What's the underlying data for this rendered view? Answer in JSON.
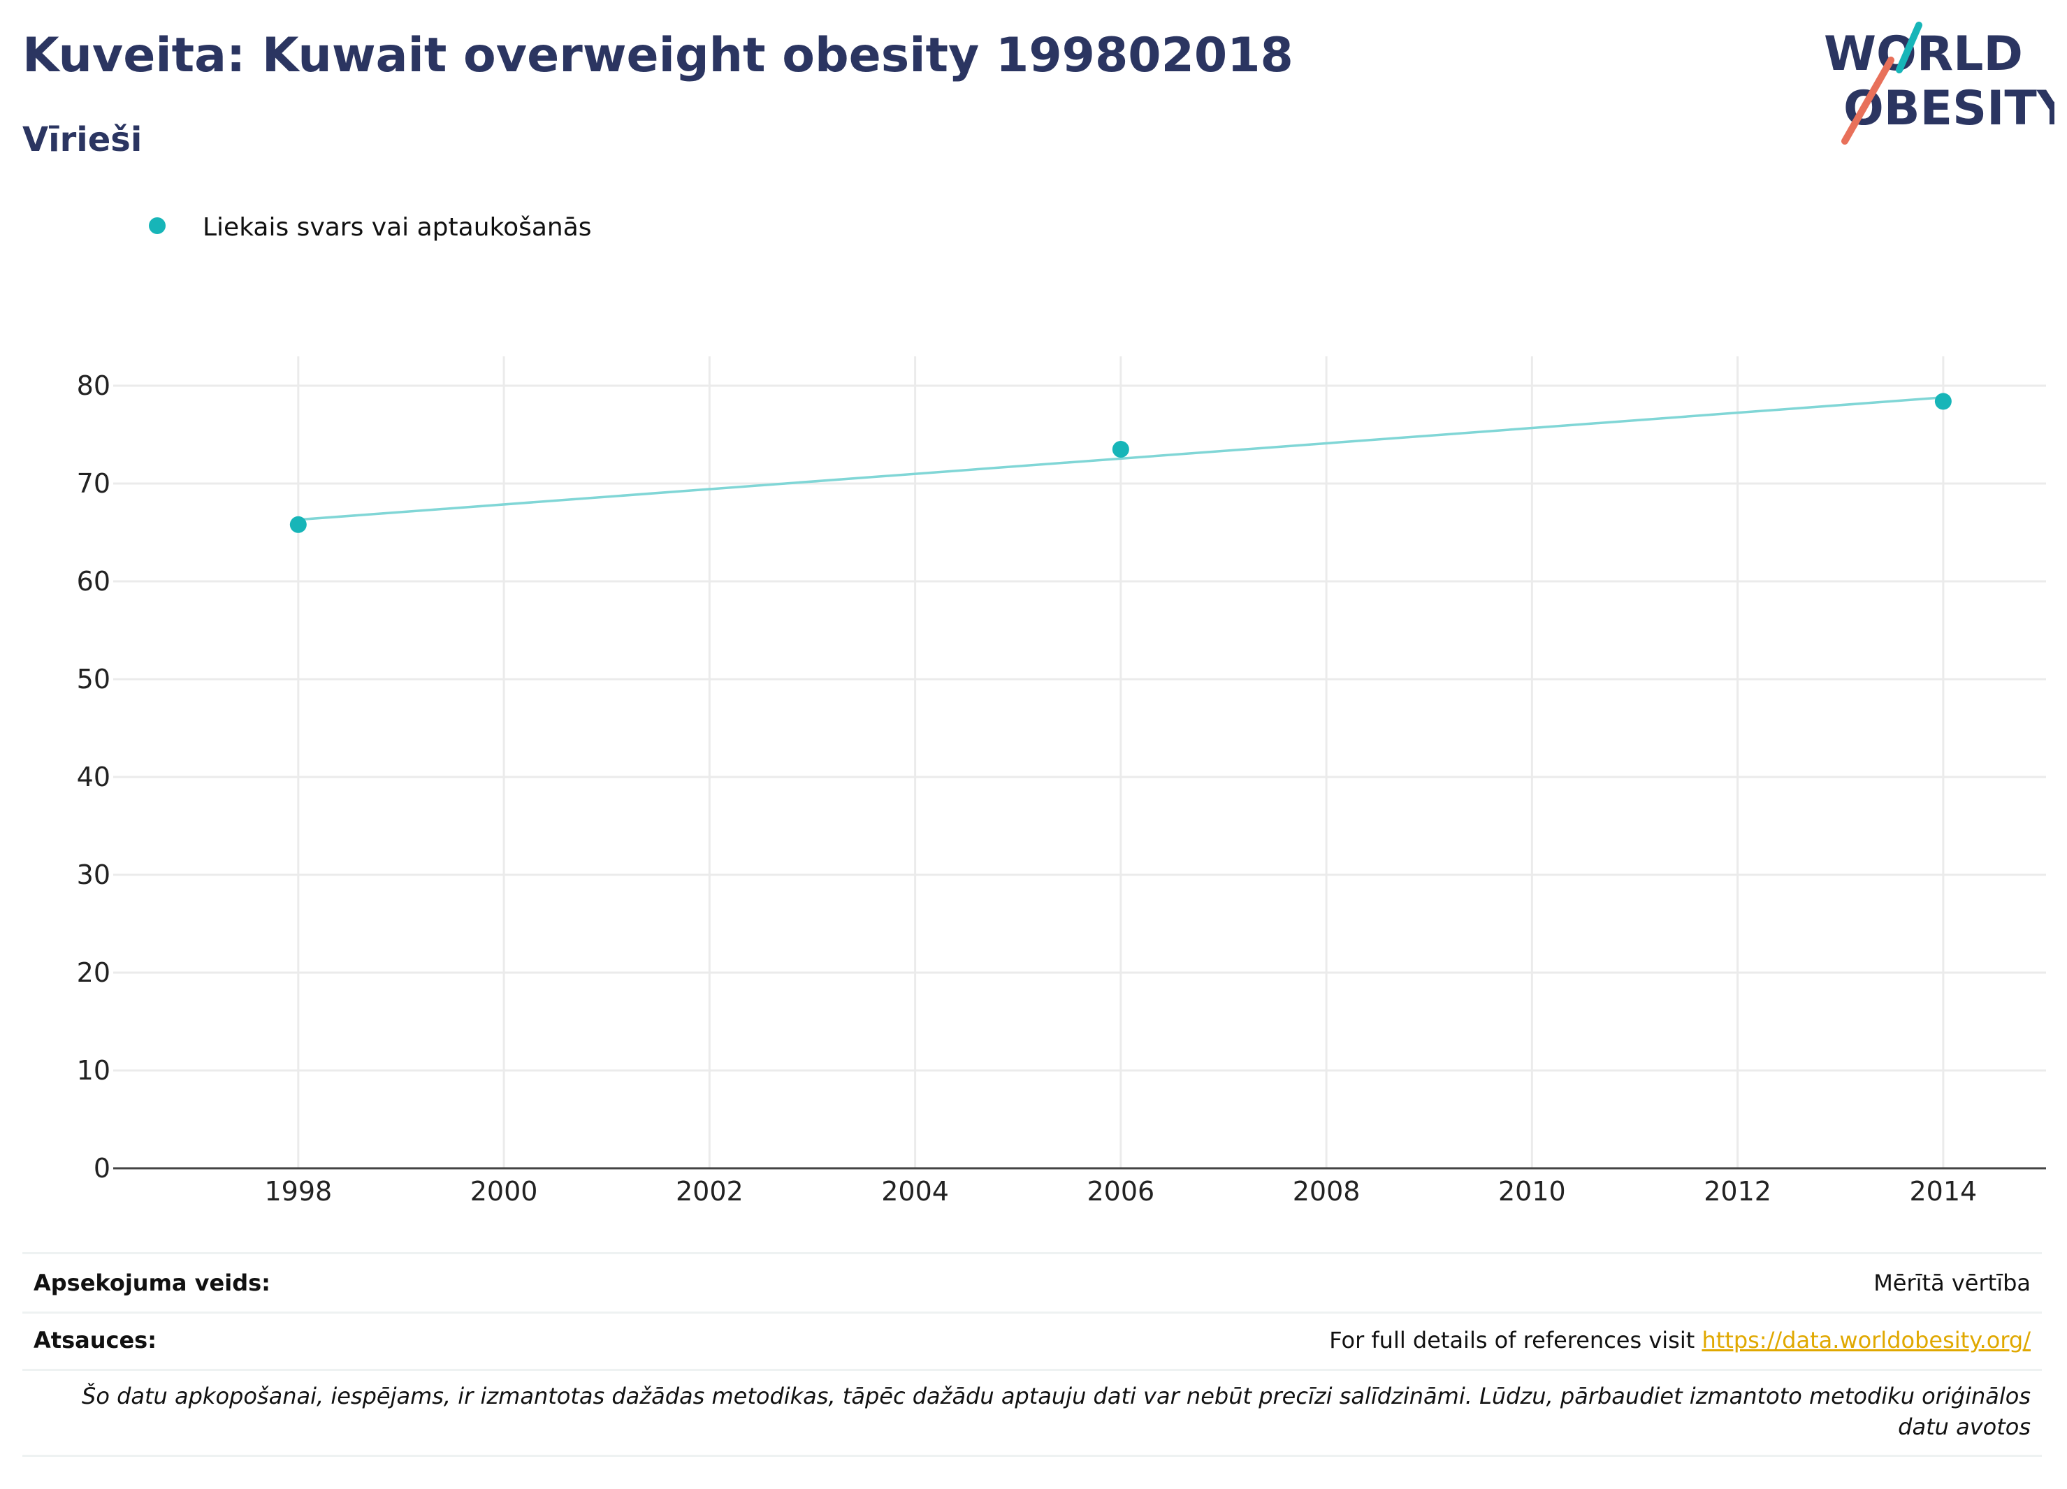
{
  "header": {
    "title": "Kuveita: Kuwait overweight obesity 199802018",
    "subtitle": "Vīrieši"
  },
  "logo": {
    "line1": "WORLD",
    "line2": "OBESITY",
    "colors": {
      "text": "#2b3561",
      "teal": "#17b5b8",
      "coral": "#e8705a"
    }
  },
  "chart_data": {
    "type": "scatter",
    "title": "",
    "xlabel": "",
    "ylabel": "",
    "x_ticks": [
      1998,
      2000,
      2002,
      2004,
      2006,
      2008,
      2010,
      2012,
      2014
    ],
    "y_ticks": [
      0,
      10,
      20,
      30,
      40,
      50,
      60,
      70,
      80
    ],
    "xlim": [
      1996.2,
      2015
    ],
    "ylim": [
      0,
      83
    ],
    "grid": true,
    "legend_position": "top-left",
    "series": [
      {
        "name": "Liekais svars vai aptaukošanās",
        "color": "#17b5b8",
        "x": [
          1998,
          2006,
          2014
        ],
        "y": [
          65.8,
          73.5,
          78.4
        ]
      }
    ],
    "trendline": {
      "color": "#80d6d6",
      "x": [
        1998,
        2014
      ],
      "y": [
        66.3,
        78.8
      ]
    }
  },
  "footer": {
    "survey_label": "Apsekojuma veids:",
    "survey_value": "Mērītā vērtība",
    "references_label": "Atsauces:",
    "references_text": "For full details of references visit",
    "references_link": "https://data.worldobesity.org/",
    "note": "Šo datu apkopošanai, iespējams, ir izmantotas dažādas metodikas, tāpēc dažādu aptauju dati var nebūt precīzi salīdzināmi. Lūdzu, pārbaudiet izmantoto metodiku oriģinālos datu avotos"
  }
}
